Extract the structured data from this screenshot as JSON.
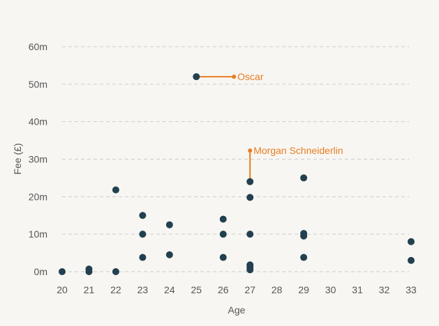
{
  "chart_data": {
    "type": "scatter",
    "title": "",
    "xlabel": "Age",
    "ylabel": "Fee (£)",
    "xlim": [
      20,
      33
    ],
    "ylim": [
      0,
      60
    ],
    "x_ticks": [
      20,
      21,
      22,
      23,
      24,
      25,
      26,
      27,
      28,
      29,
      30,
      31,
      32,
      33
    ],
    "y_ticks": [
      0,
      10,
      20,
      30,
      40,
      50,
      60
    ],
    "y_tick_labels": [
      "0m",
      "10m",
      "20m",
      "30m",
      "40m",
      "50m",
      "60m"
    ],
    "grid": true,
    "point_color": "#22404f",
    "annotation_color": "#e67e22",
    "points": [
      {
        "x": 20,
        "y": 0
      },
      {
        "x": 21,
        "y": 0.7
      },
      {
        "x": 21,
        "y": 0
      },
      {
        "x": 22,
        "y": 21.8
      },
      {
        "x": 22,
        "y": 0
      },
      {
        "x": 23,
        "y": 15
      },
      {
        "x": 23,
        "y": 10
      },
      {
        "x": 23,
        "y": 3.8
      },
      {
        "x": 24,
        "y": 12.5
      },
      {
        "x": 24,
        "y": 4.5
      },
      {
        "x": 25,
        "y": 52
      },
      {
        "x": 26,
        "y": 14
      },
      {
        "x": 26,
        "y": 10
      },
      {
        "x": 26,
        "y": 3.8
      },
      {
        "x": 27,
        "y": 24
      },
      {
        "x": 27,
        "y": 19.8
      },
      {
        "x": 27,
        "y": 10
      },
      {
        "x": 27,
        "y": 1.8
      },
      {
        "x": 27,
        "y": 1.2
      },
      {
        "x": 27,
        "y": 0.5
      },
      {
        "x": 29,
        "y": 25
      },
      {
        "x": 29,
        "y": 10.2
      },
      {
        "x": 29,
        "y": 9.5
      },
      {
        "x": 29,
        "y": 3.8
      },
      {
        "x": 33,
        "y": 8
      },
      {
        "x": 33,
        "y": 3
      }
    ],
    "annotations": [
      {
        "label": "Oscar",
        "point": {
          "x": 25,
          "y": 52
        },
        "end": {
          "x": 26.4,
          "y": 52
        },
        "text_side": "right"
      },
      {
        "label": "Morgan Schneiderlin",
        "point": {
          "x": 27,
          "y": 24
        },
        "end": {
          "x": 27,
          "y": 32.3
        },
        "text_side": "right"
      }
    ]
  }
}
